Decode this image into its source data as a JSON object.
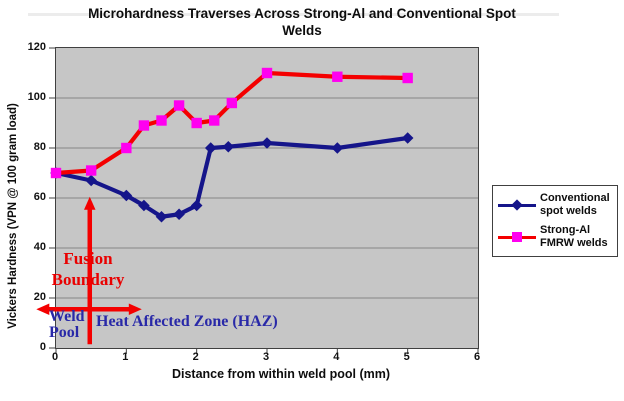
{
  "title": {
    "text": "Microhardness Traverses Across Strong-Al and Conventional Spot\nWelds"
  },
  "axes": {
    "x_label": "Distance from within weld pool (mm)",
    "y_label": "Vickers Hardness (VPN @ 100 gram load)",
    "x_ticks": [
      0,
      1,
      2,
      3,
      4,
      5,
      6
    ],
    "y_ticks": [
      0,
      20,
      40,
      60,
      80,
      100,
      120
    ]
  },
  "legend": {
    "items": [
      {
        "label": "Conventional\nspot welds",
        "line_color": "#15158a",
        "marker": "diamond",
        "marker_color": "#15158a"
      },
      {
        "label": "Strong-Al\nFMRW welds",
        "line_color": "#f40000",
        "marker": "square",
        "marker_color": "#ff00f0"
      }
    ]
  },
  "annotations": {
    "fusion_boundary_label": "Fusion\nBoundary",
    "weld_pool_label": "Weld\nPool",
    "haz_label": "Heat Affected Zone (HAZ)",
    "label_colors": {
      "fusion_boundary": "#e90000",
      "weld_pool": "#2929a8",
      "haz": "#2929a8"
    },
    "arrow_color": "#f40000",
    "vertical_arrow": {
      "x_mm": 0.48,
      "v_from": 1.5,
      "v_to": 60.5
    },
    "horizontal_arrow": {
      "v": 15.5,
      "x_from_mm": -0.28,
      "x_to_mm": 1.22
    }
  },
  "chart_data": {
    "type": "line",
    "title": "Microhardness Traverses Across Strong-Al and Conventional Spot Welds",
    "xlabel": "Distance from within weld pool (mm)",
    "ylabel": "Vickers Hardness (VPN @ 100 gram load)",
    "xlim": [
      0,
      6
    ],
    "ylim": [
      0,
      120
    ],
    "grid": true,
    "gridline_step": 20,
    "legend_position": "right",
    "plot_bg": "#c6c6c6",
    "series": [
      {
        "name": "Conventional spot welds",
        "color": "#15158a",
        "marker": "diamond",
        "marker_color": "#15158a",
        "x": [
          0,
          0.5,
          1,
          1.25,
          1.5,
          1.75,
          2,
          2.2,
          2.45,
          3,
          4,
          5
        ],
        "y": [
          70,
          67,
          61,
          57,
          52.5,
          53.5,
          57,
          80,
          80.5,
          82,
          80,
          84
        ]
      },
      {
        "name": "Strong-Al FMRW welds",
        "color": "#f40000",
        "marker": "square",
        "marker_color": "#ff00f0",
        "x": [
          0,
          0.5,
          1,
          1.25,
          1.5,
          1.75,
          2,
          2.25,
          2.5,
          3,
          4,
          5
        ],
        "y": [
          70,
          71,
          80,
          89,
          91,
          97,
          90,
          91,
          98,
          110,
          108.5,
          108
        ]
      }
    ]
  }
}
